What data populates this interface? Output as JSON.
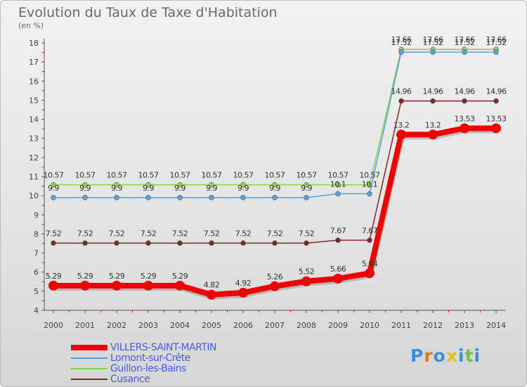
{
  "header": {
    "title": "Evolution du Taux de Taxe d'Habitation",
    "subtitle": "(en %)"
  },
  "logo": {
    "text": "Proxiti"
  },
  "chart_data": {
    "type": "line",
    "title": "Evolution du Taux de Taxe d'Habitation",
    "ylabel": "(en %)",
    "xlabel": "",
    "x": [
      "2000",
      "2001",
      "2002",
      "2003",
      "2004",
      "2005",
      "2006",
      "2007",
      "2008",
      "2009",
      "2010",
      "2011",
      "2012",
      "2013",
      "2014"
    ],
    "y_ticks": [
      "4",
      "5",
      "6",
      "7",
      "8",
      "9",
      "10",
      "11",
      "12",
      "13",
      "14",
      "15",
      "16",
      "17",
      "18"
    ],
    "ylim": [
      4,
      18
    ],
    "grid": false,
    "legend_position": "bottom-left",
    "series": [
      {
        "name": "VILLERS-SAINT-MARTIN",
        "color": "#ee0000",
        "values": [
          5.29,
          5.29,
          5.29,
          5.29,
          5.29,
          4.82,
          4.92,
          5.26,
          5.52,
          5.66,
          5.94,
          13.2,
          13.2,
          13.53,
          13.53
        ],
        "labels": [
          "5.29",
          "5.29",
          "5.29",
          "5.29",
          "5.29",
          "4.82",
          "4.92",
          "5.26",
          "5.52",
          "5.66",
          "5.94",
          "13.2",
          "13.2",
          "13.53",
          "13.53"
        ]
      },
      {
        "name": "Lomont-sur-Crête",
        "color": "#5aa0d8",
        "values": [
          9.9,
          9.9,
          9.9,
          9.9,
          9.9,
          9.9,
          9.9,
          9.9,
          9.9,
          10.1,
          10.1,
          17.52,
          17.52,
          17.52,
          17.52
        ],
        "labels": [
          "9.9",
          "9.9",
          "9.9",
          "9.9",
          "9.9",
          "9.9",
          "9.9",
          "9.9",
          "9.9",
          "10.1",
          "10.1",
          "17.52",
          "17.52",
          "17.52",
          "17.52"
        ]
      },
      {
        "name": "Guillon-les-Bains",
        "color": "#88d24a",
        "values": [
          10.57,
          10.57,
          10.57,
          10.57,
          10.57,
          10.57,
          10.57,
          10.57,
          10.57,
          10.57,
          10.57,
          17.66,
          17.66,
          17.66,
          17.66
        ],
        "labels": [
          "10.57",
          "10.57",
          "10.57",
          "10.57",
          "10.57",
          "10.57",
          "10.57",
          "10.57",
          "10.57",
          "10.57",
          "10.57",
          "17.66",
          "17.66",
          "17.66",
          "17.66"
        ]
      },
      {
        "name": "Cusance",
        "color": "#7a2a2a",
        "values": [
          7.52,
          7.52,
          7.52,
          7.52,
          7.52,
          7.52,
          7.52,
          7.52,
          7.52,
          7.67,
          7.67,
          14.96,
          14.96,
          14.96,
          14.96
        ],
        "labels": [
          "7.52",
          "7.52",
          "7.52",
          "7.52",
          "7.52",
          "7.52",
          "7.52",
          "7.52",
          "7.52",
          "7.67",
          "7.67",
          "14.96",
          "14.96",
          "14.96",
          "14.96"
        ]
      }
    ]
  }
}
